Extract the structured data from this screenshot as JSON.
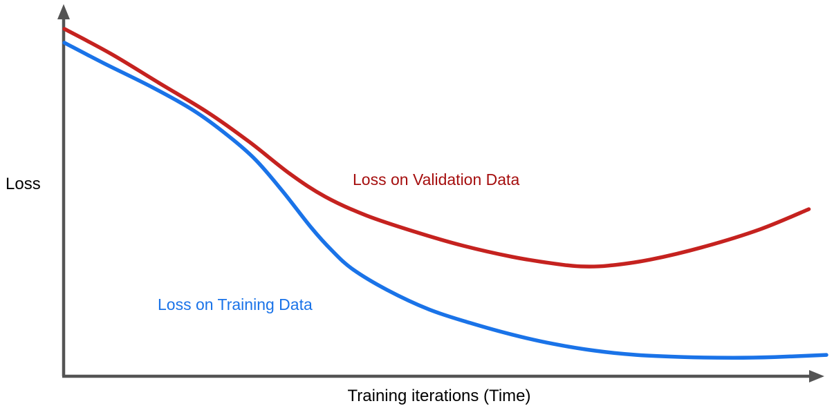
{
  "figure": {
    "background": "#ffffff",
    "axis_color": "#545454"
  },
  "chart_data": {
    "type": "line",
    "title": "",
    "xlabel": "Training iterations (Time)",
    "ylabel": "Loss",
    "grid": false,
    "x_ticks": [],
    "y_ticks": [],
    "legend_position": "inline-curve-labels",
    "series": [
      {
        "name": "Loss on Validation Data",
        "color": "#c5221f",
        "label_color": "#a50e0e",
        "points": [
          [
            0.001,
            0.977
          ],
          [
            0.062,
            0.907
          ],
          [
            0.125,
            0.825
          ],
          [
            0.189,
            0.742
          ],
          [
            0.243,
            0.66
          ],
          [
            0.297,
            0.569
          ],
          [
            0.343,
            0.505
          ],
          [
            0.397,
            0.452
          ],
          [
            0.461,
            0.406
          ],
          [
            0.524,
            0.367
          ],
          [
            0.588,
            0.336
          ],
          [
            0.642,
            0.317
          ],
          [
            0.678,
            0.309
          ],
          [
            0.714,
            0.311
          ],
          [
            0.769,
            0.328
          ],
          [
            0.841,
            0.365
          ],
          [
            0.914,
            0.414
          ],
          [
            0.977,
            0.47
          ]
        ]
      },
      {
        "name": "Loss on Training Data",
        "color": "#1a73e8",
        "label_color": "#1a73e8",
        "points": [
          [
            0.001,
            0.938
          ],
          [
            0.053,
            0.88
          ],
          [
            0.116,
            0.813
          ],
          [
            0.17,
            0.748
          ],
          [
            0.216,
            0.676
          ],
          [
            0.252,
            0.608
          ],
          [
            0.288,
            0.518
          ],
          [
            0.325,
            0.417
          ],
          [
            0.352,
            0.353
          ],
          [
            0.379,
            0.301
          ],
          [
            0.424,
            0.243
          ],
          [
            0.479,
            0.188
          ],
          [
            0.533,
            0.15
          ],
          [
            0.588,
            0.117
          ],
          [
            0.642,
            0.091
          ],
          [
            0.696,
            0.072
          ],
          [
            0.751,
            0.06
          ],
          [
            0.814,
            0.054
          ],
          [
            0.878,
            0.052
          ],
          [
            0.932,
            0.054
          ],
          [
            1.0,
            0.06
          ]
        ]
      }
    ]
  }
}
